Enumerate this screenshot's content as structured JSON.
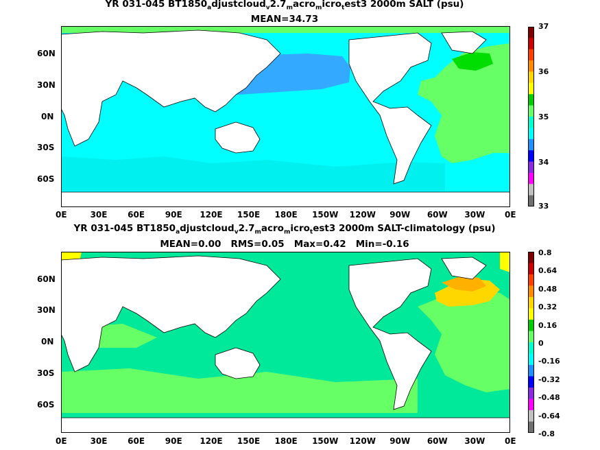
{
  "colors": {
    "land": "#ffffff",
    "coast": "#000000"
  },
  "panels": [
    {
      "title_line1_prefix": "YR 031-045 BT1850",
      "title_sub_a": "a",
      "title_mid1": "djustcloud",
      "title_sub_v": "v",
      "title_mid2": "2.7",
      "title_sub_m1": "m",
      "title_mid3": "acro",
      "title_sub_m2": "m",
      "title_mid4": "icro",
      "title_sub_t": "t",
      "title_suffix": "est3 2000m SALT (psu)",
      "title_line2": "MEAN=34.73",
      "background_fill": "#00ffff",
      "colorbar": {
        "labels": [
          "37",
          "36",
          "35",
          "34",
          "33"
        ],
        "colors": [
          "#7f0000",
          "#cc0000",
          "#ff4000",
          "#ff8c00",
          "#ffd700",
          "#ffff00",
          "#00cc00",
          "#66ff66",
          "#00ffcc",
          "#00ffff",
          "#1e90ff",
          "#0000ff",
          "#8a2be2",
          "#ff00ff",
          "#c0c0c0",
          "#707070"
        ]
      }
    },
    {
      "title_line1_prefix": "YR 031-045 BT1850",
      "title_sub_a": "a",
      "title_mid1": "djustcloud",
      "title_sub_v": "v",
      "title_mid2": "2.7",
      "title_sub_m1": "m",
      "title_mid3": "acro",
      "title_sub_m2": "m",
      "title_mid4": "icro",
      "title_sub_t": "t",
      "title_suffix": "est3 2000m SALT-climatology (psu)",
      "title_line2": "MEAN=0.00   RMS=0.05   Max=0.42   Min=-0.16",
      "background_fill": "#00e89a",
      "colorbar": {
        "labels": [
          "0.8",
          "0.64",
          "0.48",
          "0.32",
          "0.16",
          "0",
          "-0.16",
          "-0.32",
          "-0.48",
          "-0.64",
          "-0.8"
        ],
        "colors": [
          "#7f0000",
          "#cc0000",
          "#ff4000",
          "#ff8c00",
          "#ffd700",
          "#ffff00",
          "#00cc00",
          "#66ff66",
          "#00ffcc",
          "#00ffff",
          "#1e90ff",
          "#0000ff",
          "#8a2be2",
          "#ff00ff",
          "#c0c0c0",
          "#707070"
        ]
      }
    }
  ],
  "lon_labels": [
    "0E",
    "30E",
    "60E",
    "90E",
    "120E",
    "150E",
    "180E",
    "150W",
    "120W",
    "90W",
    "60W",
    "30W",
    "0E"
  ],
  "lat_labels": [
    "60N",
    "30N",
    "0N",
    "30S",
    "60S"
  ]
}
